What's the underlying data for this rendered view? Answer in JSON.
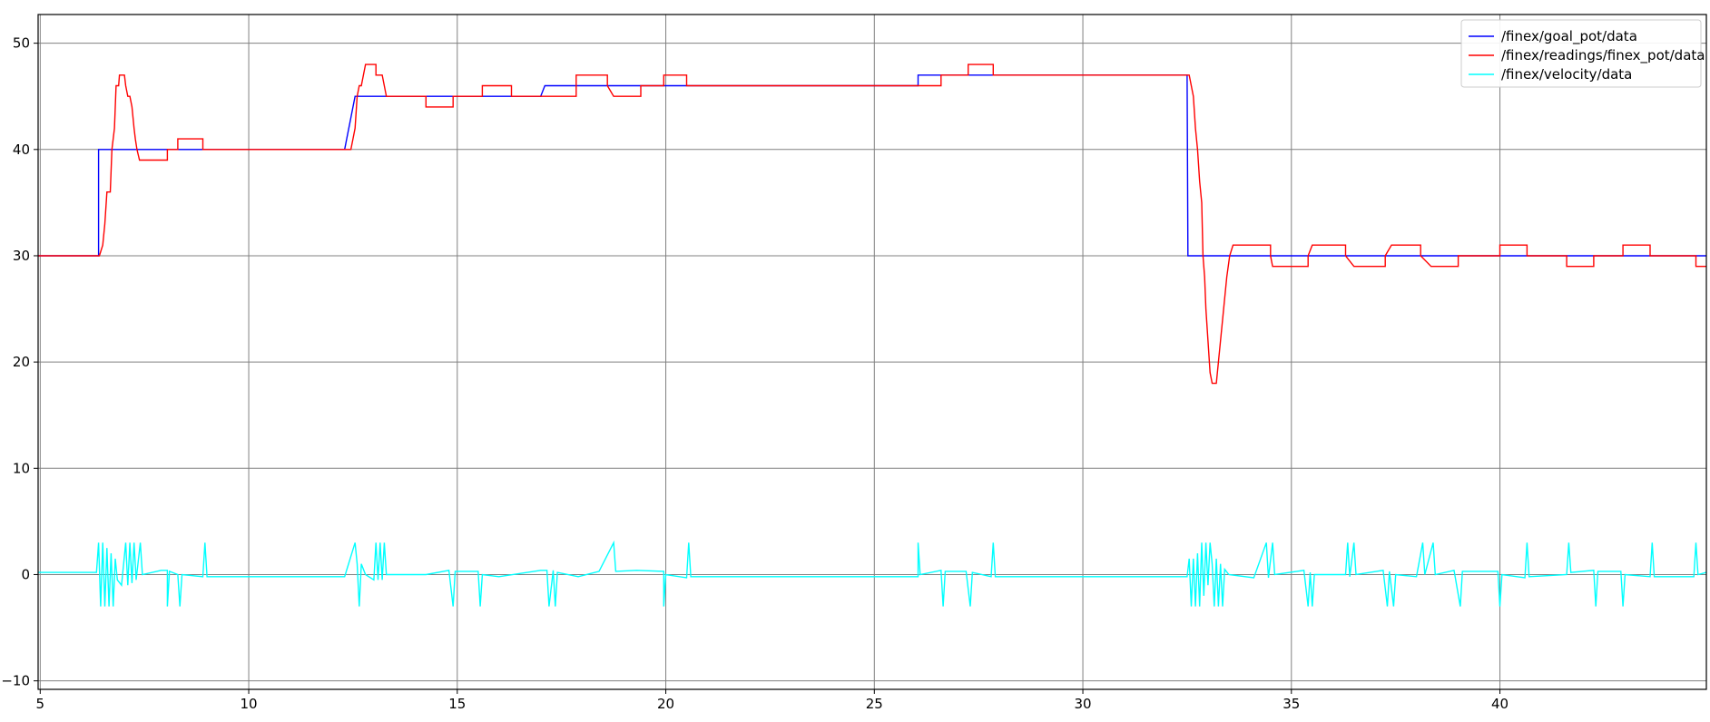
{
  "chart_data": {
    "type": "line",
    "title": "",
    "xlabel": "",
    "ylabel": "",
    "xlim": [
      4.95,
      44.95
    ],
    "ylim": [
      -10.8,
      52.7
    ],
    "xticks": [
      5,
      10,
      15,
      20,
      25,
      30,
      35,
      40
    ],
    "yticks": [
      -10,
      0,
      10,
      20,
      30,
      40,
      50
    ],
    "xtick_labels": [
      "5",
      "10",
      "15",
      "20",
      "25",
      "30",
      "35",
      "40"
    ],
    "ytick_labels": [
      "−10",
      "0",
      "10",
      "20",
      "30",
      "40",
      "50"
    ],
    "grid": true,
    "legend_position": "top-right",
    "series": [
      {
        "name": "/finex/goal_pot/data",
        "color": "#0000ff",
        "points": [
          [
            4.95,
            30
          ],
          [
            6.4,
            30
          ],
          [
            6.4,
            40
          ],
          [
            12.3,
            40
          ],
          [
            12.55,
            45
          ],
          [
            17.0,
            45
          ],
          [
            17.1,
            46
          ],
          [
            26.05,
            46
          ],
          [
            26.05,
            47
          ],
          [
            32.5,
            47
          ],
          [
            32.52,
            30
          ],
          [
            44.95,
            30
          ]
        ]
      },
      {
        "name": "/finex/readings/finex_pot/data",
        "color": "#ff0000",
        "points": [
          [
            4.95,
            30
          ],
          [
            6.42,
            30
          ],
          [
            6.5,
            31
          ],
          [
            6.55,
            33
          ],
          [
            6.6,
            36
          ],
          [
            6.68,
            36
          ],
          [
            6.72,
            40
          ],
          [
            6.78,
            42
          ],
          [
            6.82,
            46
          ],
          [
            6.88,
            46
          ],
          [
            6.9,
            47
          ],
          [
            7.02,
            47
          ],
          [
            7.05,
            46
          ],
          [
            7.1,
            45
          ],
          [
            7.15,
            45
          ],
          [
            7.2,
            44
          ],
          [
            7.25,
            42
          ],
          [
            7.28,
            41
          ],
          [
            7.32,
            40
          ],
          [
            7.38,
            39
          ],
          [
            8.05,
            39
          ],
          [
            8.05,
            40
          ],
          [
            8.3,
            40
          ],
          [
            8.3,
            41
          ],
          [
            8.9,
            41
          ],
          [
            8.9,
            40
          ],
          [
            12.45,
            40
          ],
          [
            12.5,
            41
          ],
          [
            12.55,
            42
          ],
          [
            12.6,
            45
          ],
          [
            12.65,
            46
          ],
          [
            12.7,
            46
          ],
          [
            12.75,
            47
          ],
          [
            12.8,
            48
          ],
          [
            13.05,
            48
          ],
          [
            13.05,
            47
          ],
          [
            13.2,
            47
          ],
          [
            13.25,
            46
          ],
          [
            13.3,
            45
          ],
          [
            14.25,
            45
          ],
          [
            14.25,
            44
          ],
          [
            14.9,
            44
          ],
          [
            14.9,
            45
          ],
          [
            15.6,
            45
          ],
          [
            15.6,
            46
          ],
          [
            16.3,
            46
          ],
          [
            16.3,
            45
          ],
          [
            17.85,
            45
          ],
          [
            17.85,
            46
          ],
          [
            17.85,
            47
          ],
          [
            18.6,
            47
          ],
          [
            18.6,
            46
          ],
          [
            18.75,
            45
          ],
          [
            19.4,
            45
          ],
          [
            19.4,
            46
          ],
          [
            19.95,
            46
          ],
          [
            19.95,
            47
          ],
          [
            20.5,
            47
          ],
          [
            20.5,
            46
          ],
          [
            26.6,
            46
          ],
          [
            26.6,
            47
          ],
          [
            27.25,
            47
          ],
          [
            27.25,
            48
          ],
          [
            27.85,
            48
          ],
          [
            27.85,
            47
          ],
          [
            32.55,
            47
          ],
          [
            32.6,
            46
          ],
          [
            32.65,
            45
          ],
          [
            32.7,
            42
          ],
          [
            32.75,
            40
          ],
          [
            32.8,
            37
          ],
          [
            32.85,
            35
          ],
          [
            32.88,
            30
          ],
          [
            32.92,
            28
          ],
          [
            32.95,
            25
          ],
          [
            33.0,
            22
          ],
          [
            33.05,
            19
          ],
          [
            33.1,
            18
          ],
          [
            33.2,
            18
          ],
          [
            33.25,
            20
          ],
          [
            33.3,
            22
          ],
          [
            33.35,
            24
          ],
          [
            33.4,
            26
          ],
          [
            33.45,
            28
          ],
          [
            33.52,
            30
          ],
          [
            33.6,
            31
          ],
          [
            34.5,
            31
          ],
          [
            34.5,
            30
          ],
          [
            34.55,
            29
          ],
          [
            35.4,
            29
          ],
          [
            35.4,
            30
          ],
          [
            35.5,
            31
          ],
          [
            36.3,
            31
          ],
          [
            36.3,
            30
          ],
          [
            36.5,
            29
          ],
          [
            37.25,
            29
          ],
          [
            37.25,
            30
          ],
          [
            37.4,
            31
          ],
          [
            38.1,
            31
          ],
          [
            38.1,
            30
          ],
          [
            38.35,
            29
          ],
          [
            39.0,
            29
          ],
          [
            39.0,
            30
          ],
          [
            40.0,
            30
          ],
          [
            40.0,
            31
          ],
          [
            40.65,
            31
          ],
          [
            40.65,
            30
          ],
          [
            41.6,
            30
          ],
          [
            41.6,
            29
          ],
          [
            42.25,
            29
          ],
          [
            42.25,
            30
          ],
          [
            42.95,
            30
          ],
          [
            42.95,
            31
          ],
          [
            43.6,
            31
          ],
          [
            43.6,
            30
          ],
          [
            44.7,
            30
          ],
          [
            44.7,
            29
          ],
          [
            44.95,
            29
          ]
        ]
      },
      {
        "name": "/finex/velocity/data",
        "color": "#00ffff",
        "points": [
          [
            4.95,
            0.2
          ],
          [
            6.35,
            0.2
          ],
          [
            6.4,
            3
          ],
          [
            6.45,
            -3
          ],
          [
            6.5,
            3
          ],
          [
            6.55,
            -3
          ],
          [
            6.6,
            2.5
          ],
          [
            6.65,
            -3
          ],
          [
            6.7,
            2
          ],
          [
            6.75,
            -3
          ],
          [
            6.8,
            1.5
          ],
          [
            6.85,
            -0.5
          ],
          [
            6.95,
            -1
          ],
          [
            7.05,
            3
          ],
          [
            7.1,
            -1
          ],
          [
            7.15,
            3
          ],
          [
            7.2,
            -0.8
          ],
          [
            7.25,
            3
          ],
          [
            7.3,
            -0.5
          ],
          [
            7.4,
            3
          ],
          [
            7.45,
            0
          ],
          [
            7.9,
            0.4
          ],
          [
            8.05,
            0.4
          ],
          [
            8.05,
            -3
          ],
          [
            8.1,
            0.3
          ],
          [
            8.3,
            0
          ],
          [
            8.35,
            -3
          ],
          [
            8.4,
            0
          ],
          [
            8.9,
            -0.2
          ],
          [
            8.95,
            3
          ],
          [
            9.0,
            -0.2
          ],
          [
            12.3,
            -0.2
          ],
          [
            12.55,
            3
          ],
          [
            12.6,
            1
          ],
          [
            12.65,
            -3
          ],
          [
            12.7,
            1
          ],
          [
            12.8,
            0
          ],
          [
            13.0,
            -0.5
          ],
          [
            13.05,
            3
          ],
          [
            13.1,
            -0.5
          ],
          [
            13.15,
            3
          ],
          [
            13.2,
            -0.5
          ],
          [
            13.25,
            3
          ],
          [
            13.3,
            0
          ],
          [
            14.25,
            0
          ],
          [
            14.8,
            0.4
          ],
          [
            14.9,
            -3
          ],
          [
            14.95,
            0.3
          ],
          [
            15.5,
            0.3
          ],
          [
            15.55,
            -3
          ],
          [
            15.6,
            0
          ],
          [
            16.0,
            -0.2
          ],
          [
            17.0,
            0.4
          ],
          [
            17.15,
            0.4
          ],
          [
            17.2,
            -3
          ],
          [
            17.3,
            0.4
          ],
          [
            17.35,
            -3
          ],
          [
            17.4,
            0.2
          ],
          [
            17.9,
            -0.2
          ],
          [
            18.4,
            0.3
          ],
          [
            18.75,
            3
          ],
          [
            18.8,
            0.3
          ],
          [
            19.3,
            0.4
          ],
          [
            19.95,
            0.3
          ],
          [
            19.95,
            -3
          ],
          [
            20.0,
            0
          ],
          [
            20.5,
            -0.3
          ],
          [
            20.55,
            3
          ],
          [
            20.6,
            -0.2
          ],
          [
            26.05,
            -0.2
          ],
          [
            26.05,
            3
          ],
          [
            26.1,
            0
          ],
          [
            26.6,
            0.4
          ],
          [
            26.65,
            -3
          ],
          [
            26.7,
            0.3
          ],
          [
            27.2,
            0.3
          ],
          [
            27.3,
            -3
          ],
          [
            27.35,
            0.2
          ],
          [
            27.8,
            -0.2
          ],
          [
            27.85,
            3
          ],
          [
            27.9,
            -0.2
          ],
          [
            32.5,
            -0.2
          ],
          [
            32.55,
            1.5
          ],
          [
            32.6,
            -3
          ],
          [
            32.65,
            1.5
          ],
          [
            32.7,
            -3
          ],
          [
            32.75,
            2
          ],
          [
            32.8,
            -3
          ],
          [
            32.85,
            3
          ],
          [
            32.9,
            -2
          ],
          [
            32.95,
            3
          ],
          [
            33.0,
            -1
          ],
          [
            33.05,
            3
          ],
          [
            33.1,
            1
          ],
          [
            33.15,
            -3
          ],
          [
            33.2,
            1.5
          ],
          [
            33.25,
            -3
          ],
          [
            33.3,
            1
          ],
          [
            33.35,
            -3
          ],
          [
            33.4,
            0.5
          ],
          [
            33.5,
            0
          ],
          [
            34.1,
            -0.3
          ],
          [
            34.4,
            3
          ],
          [
            34.45,
            -0.3
          ],
          [
            34.55,
            3
          ],
          [
            34.6,
            0
          ],
          [
            35.3,
            0.4
          ],
          [
            35.4,
            -3
          ],
          [
            35.45,
            0.2
          ],
          [
            35.5,
            -3
          ],
          [
            35.55,
            0
          ],
          [
            36.3,
            0
          ],
          [
            36.35,
            3
          ],
          [
            36.4,
            -0.2
          ],
          [
            36.5,
            3
          ],
          [
            36.55,
            0
          ],
          [
            37.2,
            0.4
          ],
          [
            37.3,
            -3
          ],
          [
            37.35,
            0.3
          ],
          [
            37.45,
            -3
          ],
          [
            37.5,
            0
          ],
          [
            38.0,
            -0.2
          ],
          [
            38.15,
            3
          ],
          [
            38.2,
            0
          ],
          [
            38.4,
            3
          ],
          [
            38.45,
            0
          ],
          [
            38.9,
            0.4
          ],
          [
            39.05,
            -3
          ],
          [
            39.1,
            0.3
          ],
          [
            39.95,
            0.3
          ],
          [
            40.0,
            -3
          ],
          [
            40.05,
            0
          ],
          [
            40.6,
            -0.3
          ],
          [
            40.65,
            3
          ],
          [
            40.7,
            -0.2
          ],
          [
            41.6,
            0
          ],
          [
            41.65,
            3
          ],
          [
            41.7,
            0.2
          ],
          [
            42.25,
            0.4
          ],
          [
            42.3,
            -3
          ],
          [
            42.35,
            0.3
          ],
          [
            42.9,
            0.3
          ],
          [
            42.95,
            -3
          ],
          [
            43.0,
            0
          ],
          [
            43.6,
            -0.2
          ],
          [
            43.65,
            3
          ],
          [
            43.7,
            -0.2
          ],
          [
            44.65,
            -0.2
          ],
          [
            44.7,
            3
          ],
          [
            44.75,
            0
          ],
          [
            44.95,
            0.2
          ]
        ]
      }
    ]
  }
}
